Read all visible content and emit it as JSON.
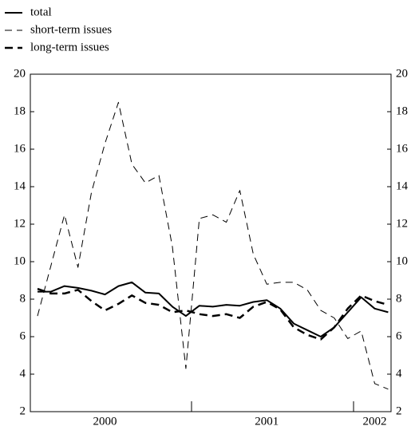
{
  "chart_data": {
    "type": "line",
    "categories": [
      null,
      null,
      null,
      null,
      null,
      "2000",
      null,
      null,
      null,
      null,
      null,
      null,
      null,
      null,
      null,
      null,
      null,
      "2001",
      null,
      null,
      null,
      null,
      null,
      null,
      null,
      "2002",
      null
    ],
    "series": [
      {
        "name": "total",
        "color": "#000000",
        "width": 2,
        "dash": "none",
        "values": [
          8.4,
          8.4,
          8.7,
          8.6,
          8.45,
          8.25,
          8.7,
          8.9,
          8.35,
          8.3,
          7.6,
          7.1,
          7.65,
          7.6,
          7.7,
          7.65,
          7.85,
          7.95,
          7.5,
          6.7,
          6.35,
          6.0,
          6.5,
          7.3,
          8.1,
          7.5,
          7.3
        ]
      },
      {
        "name": "short-term issues",
        "color": "#000000",
        "width": 1,
        "dash": "9 6",
        "values": [
          7.1,
          9.8,
          12.5,
          9.7,
          13.7,
          16.3,
          18.5,
          15.2,
          14.2,
          14.6,
          10.8,
          4.3,
          12.3,
          12.5,
          12.1,
          13.8,
          10.4,
          8.8,
          8.9,
          8.9,
          8.5,
          7.4,
          7.0,
          5.9,
          6.3,
          3.5,
          3.2
        ]
      },
      {
        "name": "long-term issues",
        "color": "#000000",
        "width": 2.5,
        "dash": "10 6",
        "values": [
          8.55,
          8.3,
          8.3,
          8.5,
          7.9,
          7.4,
          7.75,
          8.2,
          7.8,
          7.7,
          7.3,
          7.4,
          7.2,
          7.1,
          7.2,
          7.0,
          7.6,
          7.85,
          7.45,
          6.5,
          6.1,
          5.85,
          6.5,
          7.5,
          8.2,
          7.9,
          7.7
        ]
      }
    ],
    "ylim": [
      2,
      20
    ],
    "yticks": [
      2,
      4,
      6,
      8,
      10,
      12,
      14,
      16,
      18,
      20
    ],
    "y2lim": [
      2,
      20
    ],
    "y2ticks": [
      2,
      4,
      6,
      8,
      10,
      12,
      14,
      16,
      18,
      20
    ],
    "legend": "top-left"
  }
}
